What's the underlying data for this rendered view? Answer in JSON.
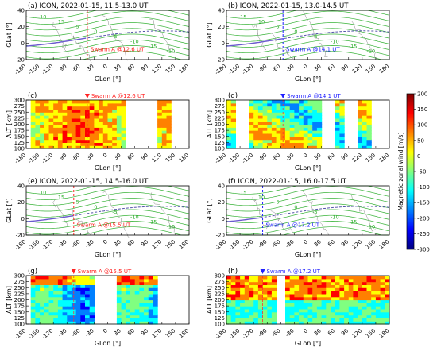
{
  "figure": {
    "colorbar": {
      "label": "Magnetic zonal wind [m/s]",
      "min": -300,
      "max": 200,
      "ticks": [
        "200",
        "150",
        "100",
        "50",
        "0",
        "-50",
        "-100",
        "-150",
        "-200",
        "-250",
        "-300"
      ],
      "colors": [
        "#00007f",
        "#0000ff",
        "#0080ff",
        "#00ffff",
        "#80ff80",
        "#ffff00",
        "#ff8000",
        "#ff0000",
        "#7f0000"
      ]
    },
    "colors": {
      "contour": "#22aa22",
      "magnetic_equator": "#6a5acd",
      "swarm_marker_red": "#ff2020",
      "swarm_marker_blue": "#2020ff",
      "dashed_equator": "#5555aa"
    }
  },
  "chart_data": [
    {
      "type": "heatmap",
      "id": "a",
      "title": "(a)  ICON, 2022-01-15, 11.5-13.0 UT",
      "kind": "map",
      "xlabel": "GLon [°]",
      "ylabel": "GLat [°]",
      "xlim": [
        -180,
        180
      ],
      "ylim": [
        -20,
        40
      ],
      "xticks": [
        "-180",
        "-150",
        "-120",
        "-90",
        "-60",
        "-30",
        "0",
        "30",
        "60",
        "90",
        "120",
        "150",
        "180"
      ],
      "yticks": [
        "40",
        "20",
        "0",
        "-20"
      ],
      "swarm_label": "Swarm A @12.6 UT",
      "swarm_glon": -45,
      "swarm_color": "red",
      "contour_labels": [
        "10",
        "15",
        "5",
        "0",
        "-5",
        "-10",
        "-15",
        "-10"
      ]
    },
    {
      "type": "heatmap",
      "id": "b",
      "title": "(b)  ICON, 2022-01-15, 13.0-14.5 UT",
      "kind": "map",
      "xlabel": "GLon [°]",
      "ylabel": "GLat [°]",
      "xlim": [
        -180,
        180
      ],
      "ylim": [
        -20,
        40
      ],
      "xticks": [
        "-180",
        "-150",
        "-120",
        "-90",
        "-60",
        "-30",
        "0",
        "30",
        "60",
        "90",
        "120",
        "150",
        "180"
      ],
      "yticks": [
        "40",
        "20",
        "0",
        "-20"
      ],
      "swarm_label": "Swarm A @14.1 UT",
      "swarm_glon": -55,
      "swarm_color": "blue",
      "contour_labels": [
        "15",
        "10",
        "5",
        "0",
        "-5",
        "-10",
        "-15",
        "-10"
      ]
    },
    {
      "type": "heatmap",
      "id": "c",
      "title": "(c)",
      "kind": "altitude",
      "xlabel": "GLon [°]",
      "ylabel": "ALT [km]",
      "xlim": [
        -180,
        180
      ],
      "ylim": [
        100,
        300
      ],
      "xticks": [
        "-180",
        "-150",
        "-120",
        "-90",
        "-60",
        "-30",
        "0",
        "30",
        "60",
        "90",
        "120",
        "150",
        "180"
      ],
      "yticks": [
        "300",
        "275",
        "250",
        "225",
        "200",
        "175",
        "150",
        "125",
        "100"
      ],
      "swarm_label": "Swarm A @12.6 UT",
      "swarm_glon": -45,
      "swarm_color": "red",
      "data_lon_ranges": [
        [
          -165,
          40
        ],
        [
          110,
          140
        ]
      ],
      "dominant": "positive"
    },
    {
      "type": "heatmap",
      "id": "d",
      "title": "(d)",
      "kind": "altitude",
      "xlabel": "GLon [°]",
      "ylabel": "ALT [km]",
      "xlim": [
        -180,
        180
      ],
      "ylim": [
        100,
        300
      ],
      "xticks": [
        "-180",
        "-150",
        "-120",
        "-90",
        "-60",
        "-30",
        "0",
        "30",
        "60",
        "90",
        "120",
        "150",
        "180"
      ],
      "yticks": [
        "300",
        "275",
        "250",
        "225",
        "200",
        "175",
        "150",
        "125",
        "100"
      ],
      "swarm_label": "Swarm A @14.1 UT",
      "swarm_glon": -55,
      "swarm_color": "blue",
      "data_lon_ranges": [
        [
          -180,
          -160
        ],
        [
          -130,
          30
        ],
        [
          60,
          80
        ],
        [
          110,
          140
        ]
      ],
      "dominant": "mixed"
    },
    {
      "type": "heatmap",
      "id": "e",
      "title": "(e)  ICON, 2022-01-15, 14.5-16.0 UT",
      "kind": "map",
      "xlabel": "GLon [°]",
      "ylabel": "GLat [°]",
      "xlim": [
        -180,
        180
      ],
      "ylim": [
        -20,
        40
      ],
      "xticks": [
        "-180",
        "-150",
        "-120",
        "-90",
        "-60",
        "-30",
        "0",
        "30",
        "60",
        "90",
        "120",
        "150",
        "180"
      ],
      "yticks": [
        "40",
        "20",
        "0",
        "-20"
      ],
      "swarm_label": "Swarm A @15.5 UT",
      "swarm_glon": -75,
      "swarm_color": "red",
      "contour_labels": [
        "10",
        "15",
        "5",
        "0",
        "-5",
        "-10",
        "-15",
        "-10"
      ]
    },
    {
      "type": "heatmap",
      "id": "f",
      "title": "(f)  ICON, 2022-01-15, 16.0-17.5 UT",
      "kind": "map",
      "xlabel": "GLon [°]",
      "ylabel": "GLat [°]",
      "xlim": [
        -180,
        180
      ],
      "ylim": [
        -20,
        40
      ],
      "xticks": [
        "-180",
        "-150",
        "-120",
        "-90",
        "-60",
        "-30",
        "0",
        "30",
        "60",
        "90",
        "120",
        "150",
        "180"
      ],
      "yticks": [
        "40",
        "20",
        "0",
        "-20"
      ],
      "swarm_label": "Swarm A @17.2 UT",
      "swarm_glon": -100,
      "swarm_color": "blue",
      "contour_labels": [
        "15",
        "10",
        "5",
        "0",
        "-5",
        "-10",
        "-15",
        "-10"
      ]
    },
    {
      "type": "heatmap",
      "id": "g",
      "title": "(g)",
      "kind": "altitude",
      "xlabel": "GLon [°]",
      "ylabel": "ALT [km]",
      "xlim": [
        -180,
        180
      ],
      "ylim": [
        100,
        300
      ],
      "xticks": [
        "-180",
        "-150",
        "-120",
        "-90",
        "-60",
        "-30",
        "0",
        "30",
        "60",
        "90",
        "120",
        "150",
        "180"
      ],
      "yticks": [
        "300",
        "275",
        "250",
        "225",
        "200",
        "175",
        "150",
        "125",
        "100"
      ],
      "swarm_label": "Swarm A @15.5 UT",
      "swarm_glon": -75,
      "swarm_color": "red",
      "data_lon_ranges": [
        [
          -165,
          -30
        ],
        [
          20,
          110
        ]
      ],
      "dominant": "negative"
    },
    {
      "type": "heatmap",
      "id": "h",
      "title": "(h)",
      "kind": "altitude",
      "xlabel": "GLon [°]",
      "ylabel": "ALT [km]",
      "xlim": [
        -180,
        180
      ],
      "ylim": [
        100,
        300
      ],
      "xticks": [
        "-180",
        "-150",
        "-120",
        "-90",
        "-60",
        "-30",
        "0",
        "30",
        "60",
        "90",
        "120",
        "150",
        "180"
      ],
      "yticks": [
        "300",
        "275",
        "250",
        "225",
        "200",
        "175",
        "150",
        "125",
        "100"
      ],
      "swarm_label": "Swarm A @17.2 UT",
      "swarm_glon": -100,
      "swarm_color": "blue",
      "data_lon_ranges": [
        [
          -180,
          -75
        ],
        [
          -50,
          180
        ]
      ],
      "dominant": "mixed_high"
    }
  ]
}
